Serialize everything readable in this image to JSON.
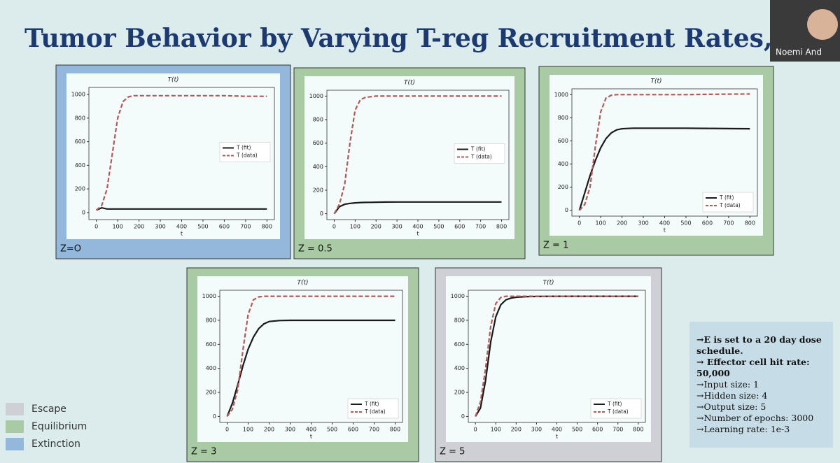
{
  "title": "Tumor Behavior by Varying T-reg Recruitment Rates,",
  "presenter": "Noemi And",
  "chart_data": [
    {
      "type": "line",
      "title": "T(t)",
      "x_label": "t",
      "panel_label": "Z=O",
      "panel_color": "#93b8dc",
      "legend": "center right",
      "x": [
        0,
        25,
        50,
        75,
        100,
        125,
        150,
        175,
        200,
        250,
        300,
        400,
        500,
        600,
        700,
        800
      ],
      "series": [
        {
          "name": "T (fit)",
          "color": "#1a1a1a",
          "dash": false,
          "values": [
            20,
            40,
            30,
            30,
            30,
            30,
            30,
            30,
            30,
            30,
            30,
            30,
            30,
            30,
            30,
            30
          ]
        },
        {
          "name": "T (data)",
          "color": "#b05a5a",
          "dash": true,
          "values": [
            20,
            60,
            200,
            500,
            800,
            940,
            980,
            990,
            990,
            990,
            990,
            990,
            990,
            990,
            985,
            985
          ]
        }
      ],
      "xlim": [
        -35,
        835
      ],
      "ylim": [
        -60,
        1060
      ],
      "xticks": [
        0,
        100,
        200,
        300,
        400,
        500,
        600,
        700,
        800
      ],
      "yticks": [
        0,
        200,
        400,
        600,
        800,
        1000
      ]
    },
    {
      "type": "line",
      "title": "T(t)",
      "x_label": "t",
      "panel_label": "Z = 0.5",
      "panel_color": "#a9cba3",
      "legend": "center right",
      "x": [
        0,
        25,
        50,
        75,
        100,
        125,
        150,
        175,
        200,
        250,
        300,
        400,
        500,
        600,
        700,
        800
      ],
      "series": [
        {
          "name": "T (fit)",
          "color": "#1a1a1a",
          "dash": false,
          "values": [
            0,
            60,
            80,
            88,
            92,
            95,
            96,
            97,
            98,
            99,
            100,
            100,
            100,
            100,
            100,
            100
          ]
        },
        {
          "name": "T (data)",
          "color": "#b05a5a",
          "dash": true,
          "values": [
            0,
            80,
            250,
            600,
            880,
            970,
            990,
            995,
            1000,
            1000,
            1000,
            1000,
            1000,
            1000,
            1000,
            1000
          ]
        }
      ],
      "xlim": [
        -35,
        835
      ],
      "ylim": [
        -50,
        1050
      ],
      "xticks": [
        0,
        100,
        200,
        300,
        400,
        500,
        600,
        700,
        800
      ],
      "yticks": [
        0,
        200,
        400,
        600,
        800,
        1000
      ]
    },
    {
      "type": "line",
      "title": "T(t)",
      "x_label": "t",
      "panel_label": "Z = 1",
      "panel_color": "#a9cba3",
      "legend": "lower right",
      "x": [
        0,
        25,
        50,
        75,
        100,
        125,
        150,
        175,
        200,
        250,
        300,
        400,
        500,
        600,
        700,
        800
      ],
      "series": [
        {
          "name": "T (fit)",
          "color": "#1a1a1a",
          "dash": false,
          "values": [
            0,
            150,
            300,
            430,
            540,
            620,
            670,
            695,
            705,
            710,
            710,
            710,
            710,
            708,
            706,
            705
          ]
        },
        {
          "name": "T (data)",
          "color": "#b05a5a",
          "dash": true,
          "values": [
            0,
            50,
            200,
            550,
            850,
            970,
            995,
            1000,
            1000,
            1000,
            1000,
            1000,
            1000,
            1002,
            1004,
            1005
          ]
        }
      ],
      "xlim": [
        -35,
        835
      ],
      "ylim": [
        -50,
        1050
      ],
      "xticks": [
        0,
        100,
        200,
        300,
        400,
        500,
        600,
        700,
        800
      ],
      "yticks": [
        0,
        200,
        400,
        600,
        800,
        1000
      ]
    },
    {
      "type": "line",
      "title": "T(t)",
      "x_label": "t",
      "panel_label": "Z = 3",
      "panel_color": "#a9cba3",
      "legend": "lower right",
      "x": [
        0,
        25,
        50,
        75,
        100,
        125,
        150,
        175,
        200,
        250,
        300,
        400,
        500,
        600,
        700,
        800
      ],
      "series": [
        {
          "name": "T (fit)",
          "color": "#1a1a1a",
          "dash": false,
          "values": [
            0,
            110,
            260,
            420,
            560,
            660,
            730,
            770,
            790,
            798,
            800,
            800,
            800,
            800,
            800,
            800
          ]
        },
        {
          "name": "T (data)",
          "color": "#b05a5a",
          "dash": true,
          "values": [
            0,
            60,
            220,
            550,
            850,
            970,
            995,
            1000,
            1000,
            1000,
            1000,
            1000,
            1000,
            1000,
            1000,
            1000
          ]
        }
      ],
      "xlim": [
        -35,
        835
      ],
      "ylim": [
        -50,
        1050
      ],
      "xticks": [
        0,
        100,
        200,
        300,
        400,
        500,
        600,
        700,
        800
      ],
      "yticks": [
        0,
        200,
        400,
        600,
        800,
        1000
      ]
    },
    {
      "type": "line",
      "title": "T(t)",
      "x_label": "t",
      "panel_label": "Z = 5",
      "panel_color": "#cfcfd6",
      "legend": "lower right",
      "x": [
        0,
        25,
        50,
        75,
        100,
        125,
        150,
        175,
        200,
        250,
        300,
        400,
        500,
        600,
        700,
        800
      ],
      "series": [
        {
          "name": "T (fit)",
          "color": "#1a1a1a",
          "dash": false,
          "values": [
            0,
            70,
            300,
            620,
            830,
            930,
            970,
            985,
            992,
            997,
            998,
            1000,
            1000,
            1000,
            1000,
            1000
          ]
        },
        {
          "name": "T (data)",
          "color": "#b05a5a",
          "dash": true,
          "values": [
            0,
            120,
            400,
            750,
            940,
            990,
            1000,
            1000,
            1000,
            1000,
            1000,
            1000,
            1000,
            1000,
            1000,
            1000
          ]
        }
      ],
      "xlim": [
        -35,
        835
      ],
      "ylim": [
        -50,
        1050
      ],
      "xticks": [
        0,
        100,
        200,
        300,
        400,
        500,
        600,
        700,
        800
      ],
      "yticks": [
        0,
        200,
        400,
        600,
        800,
        1000
      ]
    }
  ],
  "key": [
    {
      "label": "Escape",
      "color": "#cfcfd6"
    },
    {
      "label": "Equilibrium",
      "color": "#a9cba3"
    },
    {
      "label": "Extinction",
      "color": "#93b8dc"
    }
  ],
  "notes": [
    "→E is set to a 20 day dose schedule.",
    "→ Effector cell hit rate: 50,000",
    "→Input size: 1",
    "→Hidden size: 4",
    "→Output size: 5",
    "→Number of epochs: 3000",
    "→Learning rate: 1e-3"
  ]
}
